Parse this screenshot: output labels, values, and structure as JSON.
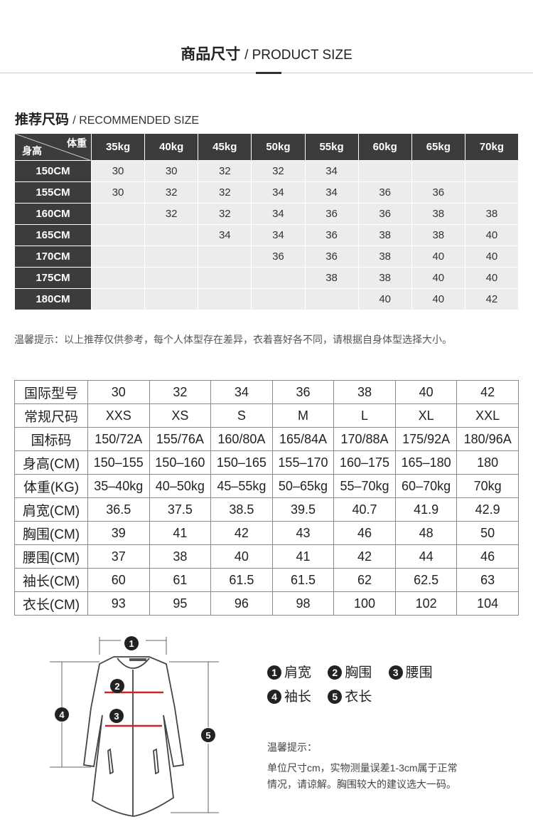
{
  "header": {
    "title_cn": "商品尺寸",
    "title_en": "/ PRODUCT SIZE"
  },
  "recommended": {
    "title_cn": "推荐尺码",
    "title_en": "/ RECOMMENDED SIZE",
    "corner_weight": "体重",
    "corner_height": "身高",
    "columns": [
      "35kg",
      "40kg",
      "45kg",
      "50kg",
      "55kg",
      "60kg",
      "65kg",
      "70kg"
    ],
    "rows": [
      {
        "height": "150CM",
        "values": [
          "30",
          "30",
          "32",
          "32",
          "34",
          "",
          "",
          ""
        ]
      },
      {
        "height": "155CM",
        "values": [
          "30",
          "32",
          "32",
          "34",
          "34",
          "36",
          "36",
          ""
        ]
      },
      {
        "height": "160CM",
        "values": [
          "",
          "32",
          "32",
          "34",
          "36",
          "36",
          "38",
          "38"
        ]
      },
      {
        "height": "165CM",
        "values": [
          "",
          "",
          "34",
          "34",
          "36",
          "38",
          "38",
          "40"
        ]
      },
      {
        "height": "170CM",
        "values": [
          "",
          "",
          "",
          "36",
          "36",
          "38",
          "40",
          "40"
        ]
      },
      {
        "height": "175CM",
        "values": [
          "",
          "",
          "",
          "",
          "38",
          "38",
          "40",
          "40"
        ]
      },
      {
        "height": "180CM",
        "values": [
          "",
          "",
          "",
          "",
          "",
          "40",
          "40",
          "42"
        ]
      }
    ]
  },
  "note": "温馨提示：以上推荐仅供参考，每个人体型存在差异，衣着喜好各不同，请根据自身体型选择大小。",
  "spec": {
    "rows": [
      {
        "label": "国际型号",
        "values": [
          "30",
          "32",
          "34",
          "36",
          "38",
          "40",
          "42"
        ]
      },
      {
        "label": "常规尺码",
        "values": [
          "XXS",
          "XS",
          "S",
          "M",
          "L",
          "XL",
          "XXL"
        ]
      },
      {
        "label": "国标码",
        "values": [
          "150/72A",
          "155/76A",
          "160/80A",
          "165/84A",
          "170/88A",
          "175/92A",
          "180/96A"
        ]
      },
      {
        "label": "身高(CM)",
        "values": [
          "150–155",
          "150–160",
          "150–165",
          "155–170",
          "160–175",
          "165–180",
          "180"
        ]
      },
      {
        "label": "体重(KG)",
        "values": [
          "35–40kg",
          "40–50kg",
          "45–55kg",
          "50–65kg",
          "55–70kg",
          "60–70kg",
          "70kg"
        ]
      },
      {
        "label": "肩宽(CM)",
        "values": [
          "36.5",
          "37.5",
          "38.5",
          "39.5",
          "40.7",
          "41.9",
          "42.9"
        ]
      },
      {
        "label": "胸围(CM)",
        "values": [
          "39",
          "41",
          "42",
          "43",
          "46",
          "48",
          "50"
        ]
      },
      {
        "label": "腰围(CM)",
        "values": [
          "37",
          "38",
          "40",
          "41",
          "42",
          "44",
          "46"
        ]
      },
      {
        "label": "袖长(CM)",
        "values": [
          "60",
          "61",
          "61.5",
          "61.5",
          "62",
          "62.5",
          "63"
        ]
      },
      {
        "label": "衣长(CM)",
        "values": [
          "93",
          "95",
          "96",
          "98",
          "100",
          "102",
          "104"
        ]
      }
    ]
  },
  "diagram": {
    "markers": [
      "1",
      "2",
      "3",
      "4",
      "5"
    ],
    "legend": [
      {
        "n": "1",
        "label": "肩宽"
      },
      {
        "n": "2",
        "label": "胸围"
      },
      {
        "n": "3",
        "label": "腰围"
      },
      {
        "n": "4",
        "label": "袖长"
      },
      {
        "n": "5",
        "label": "衣长"
      }
    ],
    "tip_title": "温馨提示：",
    "tip_line1": "单位尺寸cm，实物测量误差1-3cm属于正常",
    "tip_line2": "情况，请谅解。胸围较大的建议选大一码。"
  },
  "colors": {
    "header_bg": "#3c3c3c",
    "cell_bg": "#ececec",
    "measure_line": "#c62828"
  }
}
